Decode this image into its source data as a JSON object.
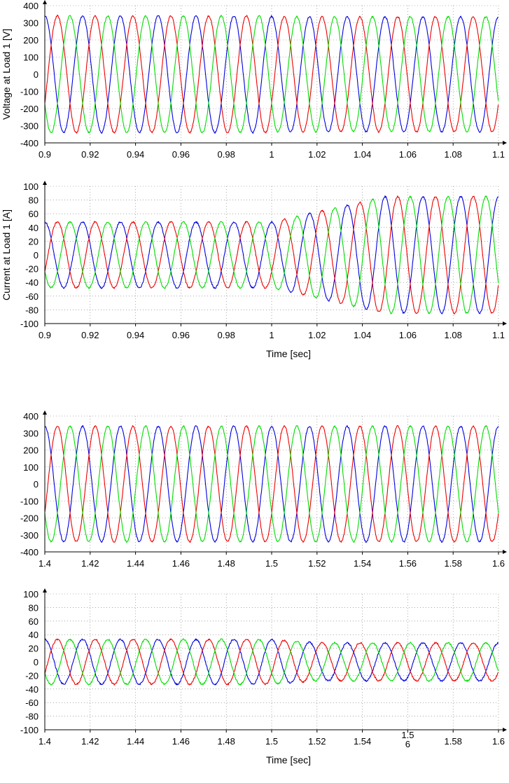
{
  "colors": {
    "phase_a": "#0000dd",
    "phase_b": "#ee0000",
    "phase_c": "#00dd00"
  },
  "chart_data": [
    {
      "type": "line",
      "title": "",
      "xlabel": "",
      "ylabel": "Voltage at Load 1 [V]",
      "xlim": [
        0.9,
        1.1
      ],
      "ylim": [
        -400,
        400
      ],
      "xticks": [
        0.9,
        0.92,
        0.94,
        0.96,
        0.98,
        1,
        1.02,
        1.04,
        1.06,
        1.08,
        1.1
      ],
      "xtick_labels": [
        "0.9",
        "0.92",
        "0.94",
        "0.96",
        "0.98",
        "1",
        "1.02",
        "1.04",
        "1.06",
        "1.08",
        "1.1"
      ],
      "yticks": [
        -400,
        -300,
        -200,
        -100,
        0,
        100,
        200,
        300,
        400
      ],
      "ytick_labels": [
        "-400",
        "-300",
        "-200",
        "-100",
        "0",
        "100",
        "200",
        "300",
        "400"
      ],
      "grid": true,
      "frequency_hz": 60,
      "series": [
        {
          "color": "#0000dd",
          "segments": [
            {
              "t_start": 0.9,
              "t_end": 1.0,
              "amplitude": 340,
              "phase_deg": 90
            },
            {
              "t_start": 1.0,
              "t_end": 1.1,
              "amplitude": 335,
              "phase_deg": 90
            }
          ]
        },
        {
          "color": "#ee0000",
          "segments": [
            {
              "t_start": 0.9,
              "t_end": 1.0,
              "amplitude": 340,
              "phase_deg": -30
            },
            {
              "t_start": 1.0,
              "t_end": 1.1,
              "amplitude": 335,
              "phase_deg": -30
            }
          ]
        },
        {
          "color": "#00dd00",
          "segments": [
            {
              "t_start": 0.9,
              "t_end": 1.0,
              "amplitude": 340,
              "phase_deg": 210
            },
            {
              "t_start": 1.0,
              "t_end": 1.1,
              "amplitude": 335,
              "phase_deg": 210
            }
          ]
        }
      ]
    },
    {
      "type": "line",
      "title": "",
      "xlabel": "Time [sec]",
      "ylabel": "Current at Load 1 [A]",
      "xlim": [
        0.9,
        1.1
      ],
      "ylim": [
        -100,
        100
      ],
      "xticks": [
        0.9,
        0.92,
        0.94,
        0.96,
        0.98,
        1,
        1.02,
        1.04,
        1.06,
        1.08,
        1.1
      ],
      "xtick_labels": [
        "0.9",
        "0.92",
        "0.94",
        "0.96",
        "0.98",
        "1",
        "1.02",
        "1.04",
        "1.06",
        "1.08",
        "1.1"
      ],
      "yticks": [
        -100,
        -80,
        -60,
        -40,
        -20,
        0,
        20,
        40,
        60,
        80,
        100
      ],
      "ytick_labels": [
        "-100",
        "-80",
        "-60",
        "-40",
        "-20",
        "0",
        "20",
        "40",
        "60",
        "80",
        "100"
      ],
      "grid": true,
      "frequency_hz": 60,
      "series": [
        {
          "color": "#0000dd",
          "segments": [
            {
              "t_start": 0.9,
              "t_end": 1.0,
              "amplitude": 48,
              "phase_deg": 90
            },
            {
              "t_start": 1.0,
              "t_end": 1.05,
              "amplitude_from": 48,
              "amplitude_to": 85,
              "phase_deg": 90
            },
            {
              "t_start": 1.05,
              "t_end": 1.1,
              "amplitude": 85,
              "phase_deg": 90
            }
          ]
        },
        {
          "color": "#ee0000",
          "segments": [
            {
              "t_start": 0.9,
              "t_end": 1.0,
              "amplitude": 48,
              "phase_deg": -30
            },
            {
              "t_start": 1.0,
              "t_end": 1.05,
              "amplitude_from": 48,
              "amplitude_to": 85,
              "phase_deg": -30
            },
            {
              "t_start": 1.05,
              "t_end": 1.1,
              "amplitude": 85,
              "phase_deg": -30
            }
          ]
        },
        {
          "color": "#00dd00",
          "segments": [
            {
              "t_start": 0.9,
              "t_end": 1.0,
              "amplitude": 48,
              "phase_deg": 210
            },
            {
              "t_start": 1.0,
              "t_end": 1.05,
              "amplitude_from": 48,
              "amplitude_to": 85,
              "phase_deg": 210
            },
            {
              "t_start": 1.05,
              "t_end": 1.1,
              "amplitude": 85,
              "phase_deg": 210
            }
          ]
        }
      ]
    },
    {
      "type": "line",
      "title": "",
      "xlabel": "",
      "ylabel": "",
      "xlim": [
        1.4,
        1.6
      ],
      "ylim": [
        -400,
        400
      ],
      "xticks": [
        1.4,
        1.42,
        1.44,
        1.46,
        1.48,
        1.5,
        1.52,
        1.54,
        1.56,
        1.58,
        1.6
      ],
      "xtick_labels": [
        "1.4",
        "1.42",
        "1.44",
        "1.46",
        "1.48",
        "1.5",
        "1.52",
        "1.54",
        "1.56",
        "1.58",
        "1.6"
      ],
      "yticks": [
        -400,
        -300,
        -200,
        -100,
        0,
        100,
        200,
        300,
        400
      ],
      "ytick_labels": [
        "-400",
        "-300",
        "-200",
        "-100",
        "0",
        "100",
        "200",
        "300",
        "400"
      ],
      "grid": true,
      "frequency_hz": 60,
      "series": [
        {
          "color": "#0000dd",
          "segments": [
            {
              "t_start": 1.4,
              "t_end": 1.6,
              "amplitude": 340,
              "phase_deg": 90
            }
          ]
        },
        {
          "color": "#ee0000",
          "segments": [
            {
              "t_start": 1.4,
              "t_end": 1.6,
              "amplitude": 340,
              "phase_deg": -30
            }
          ]
        },
        {
          "color": "#00dd00",
          "segments": [
            {
              "t_start": 1.4,
              "t_end": 1.6,
              "amplitude": 340,
              "phase_deg": 210
            }
          ]
        }
      ]
    },
    {
      "type": "line",
      "title": "",
      "xlabel": "Time [sec]",
      "ylabel": "",
      "xlim": [
        1.4,
        1.6
      ],
      "ylim": [
        -100,
        100
      ],
      "xticks": [
        1.4,
        1.42,
        1.44,
        1.46,
        1.48,
        1.5,
        1.52,
        1.54,
        1.56,
        1.58,
        1.6
      ],
      "xtick_labels": [
        "1.4",
        "1.42",
        "1.44",
        "1.46",
        "1.48",
        "1.5",
        "1.52",
        "1.54",
        "1.5\n6",
        "1.58",
        "1.6"
      ],
      "yticks": [
        -100,
        -80,
        -60,
        -40,
        -20,
        0,
        20,
        40,
        60,
        80,
        100
      ],
      "ytick_labels": [
        "-100",
        "-80",
        "-60",
        "-40",
        "-20",
        "0",
        "20",
        "40",
        "60",
        "80",
        "100"
      ],
      "grid": true,
      "frequency_hz": 60,
      "series": [
        {
          "color": "#0000dd",
          "segments": [
            {
              "t_start": 1.4,
              "t_end": 1.5,
              "amplitude": 33,
              "phase_deg": 90
            },
            {
              "t_start": 1.5,
              "t_end": 1.52,
              "amplitude_from": 33,
              "amplitude_to": 28,
              "phase_deg": 90
            },
            {
              "t_start": 1.52,
              "t_end": 1.6,
              "amplitude": 28,
              "phase_deg": 90
            }
          ]
        },
        {
          "color": "#ee0000",
          "segments": [
            {
              "t_start": 1.4,
              "t_end": 1.5,
              "amplitude": 33,
              "phase_deg": -30
            },
            {
              "t_start": 1.5,
              "t_end": 1.52,
              "amplitude_from": 33,
              "amplitude_to": 28,
              "phase_deg": -30
            },
            {
              "t_start": 1.52,
              "t_end": 1.6,
              "amplitude": 28,
              "phase_deg": -30
            }
          ]
        },
        {
          "color": "#00dd00",
          "segments": [
            {
              "t_start": 1.4,
              "t_end": 1.5,
              "amplitude": 33,
              "phase_deg": 210
            },
            {
              "t_start": 1.5,
              "t_end": 1.52,
              "amplitude_from": 33,
              "amplitude_to": 28,
              "phase_deg": 210
            },
            {
              "t_start": 1.52,
              "t_end": 1.6,
              "amplitude": 28,
              "phase_deg": 210
            }
          ]
        }
      ]
    }
  ]
}
